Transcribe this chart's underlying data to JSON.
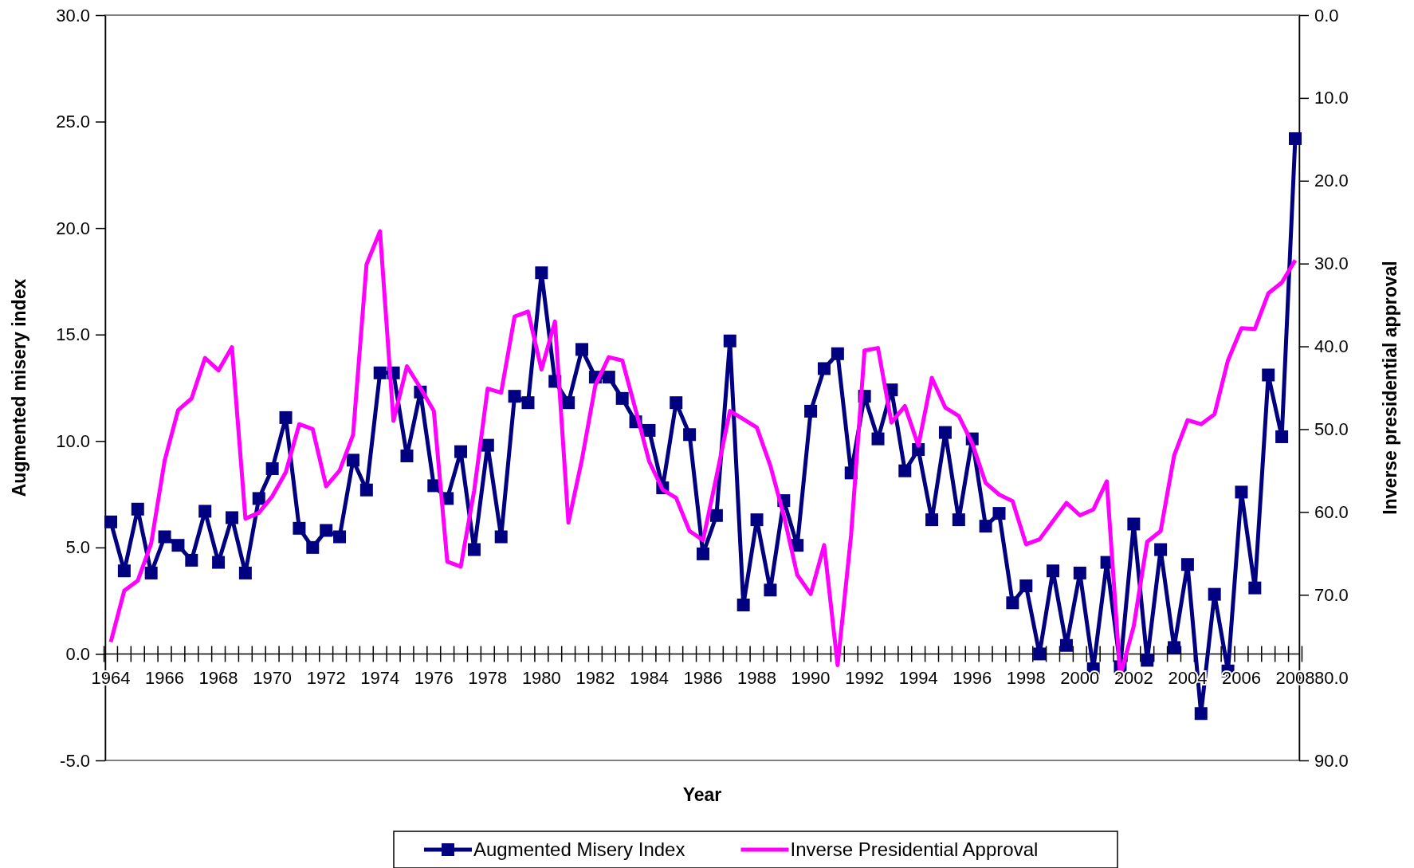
{
  "chart_data": {
    "type": "line",
    "xlabel": "Year",
    "ylabel": "Augmented misery index",
    "y2label": "Inverse presidential approval",
    "categories": [
      "1964",
      null,
      null,
      null,
      "1966",
      null,
      null,
      null,
      "1968",
      null,
      null,
      null,
      "1970",
      null,
      null,
      null,
      "1972",
      null,
      null,
      null,
      "1974",
      null,
      null,
      null,
      "1976",
      null,
      null,
      null,
      "1978",
      null,
      null,
      null,
      "1980",
      null,
      null,
      null,
      "1982",
      null,
      null,
      null,
      "1984",
      null,
      null,
      null,
      "1986",
      null,
      null,
      null,
      "1988",
      null,
      null,
      null,
      "1990",
      null,
      null,
      null,
      "1992",
      null,
      null,
      null,
      "1994",
      null,
      null,
      null,
      "1996",
      null,
      null,
      null,
      "1998",
      null,
      null,
      null,
      "2000",
      null,
      null,
      null,
      "2002",
      null,
      null,
      null,
      "2004",
      null,
      null,
      null,
      "2006",
      null,
      null,
      null,
      "2008"
    ],
    "series": [
      {
        "name": "Augmented Misery Index",
        "color": "#000080",
        "marker": "square",
        "values": [
          6.2,
          3.9,
          6.8,
          3.8,
          5.5,
          5.1,
          4.4,
          6.7,
          4.3,
          6.4,
          3.8,
          7.3,
          8.7,
          11.1,
          5.9,
          5.0,
          5.8,
          5.5,
          9.1,
          7.7,
          13.2,
          13.2,
          9.3,
          12.3,
          7.9,
          7.3,
          9.5,
          4.9,
          9.8,
          5.5,
          12.1,
          11.8,
          17.9,
          12.8,
          11.8,
          14.3,
          13.0,
          13.0,
          12.0,
          10.9,
          10.5,
          7.8,
          11.8,
          10.3,
          4.7,
          6.5,
          14.7,
          2.3,
          6.3,
          3.0,
          7.2,
          5.1,
          11.4,
          13.4,
          14.1,
          8.5,
          12.1,
          10.1,
          12.4,
          8.6,
          9.6,
          6.3,
          10.4,
          6.3,
          10.1,
          6.0,
          6.6,
          2.4,
          3.2,
          0.0,
          3.9,
          0.4,
          3.8,
          -0.7,
          4.3,
          -0.6,
          6.1,
          -0.3,
          4.9,
          0.3,
          4.2,
          -2.8,
          2.8,
          -0.8,
          7.6,
          3.1,
          13.1,
          10.2,
          24.2
        ]
      },
      {
        "name": "Inverse Presidential Approval",
        "color": "#ff00ff",
        "marker": "none",
        "axis": "y2",
        "values": [
          75.7,
          69.5,
          68.3,
          63.8,
          53.8,
          47.7,
          46.3,
          41.4,
          42.9,
          40.1,
          60.8,
          60.1,
          58.1,
          55.2,
          49.4,
          50.0,
          56.9,
          55.0,
          50.7,
          30.1,
          26.1,
          49.0,
          42.4,
          45.0,
          47.8,
          66.0,
          66.6,
          57.4,
          45.1,
          45.6,
          36.4,
          35.8,
          42.8,
          37.0,
          61.3,
          53.7,
          44.7,
          41.3,
          41.7,
          47.7,
          53.9,
          57.3,
          58.3,
          62.3,
          63.4,
          55.7,
          47.8,
          48.8,
          49.8,
          54.4,
          60.4,
          67.6,
          69.9,
          64.0,
          78.5,
          62.8,
          40.5,
          40.2,
          49.2,
          47.2,
          52.0,
          43.8,
          47.4,
          48.4,
          51.7,
          56.5,
          57.9,
          58.7,
          63.9,
          63.3,
          61.1,
          58.9,
          60.4,
          59.7,
          56.3,
          79.8,
          73.8,
          63.6,
          62.3,
          53.2,
          48.9,
          49.4,
          48.2,
          41.7,
          37.8,
          37.9,
          33.6,
          32.3,
          29.6
        ]
      }
    ],
    "ylim": [
      -5,
      30
    ],
    "yticks": [
      {
        "value": -5,
        "label": "-5.0"
      },
      {
        "value": 0,
        "label": "0.0"
      },
      {
        "value": 5,
        "label": "5.0"
      },
      {
        "value": 10,
        "label": "10.0"
      },
      {
        "value": 15,
        "label": "15.0"
      },
      {
        "value": 20,
        "label": "20.0"
      },
      {
        "value": 25,
        "label": "25.0"
      },
      {
        "value": 30,
        "label": "30.0"
      }
    ],
    "y2lim": [
      90,
      0
    ],
    "y2ticks": [
      {
        "value": 0,
        "label": "0.0"
      },
      {
        "value": 10,
        "label": "10.0"
      },
      {
        "value": 20,
        "label": "20.0"
      },
      {
        "value": 30,
        "label": "30.0"
      },
      {
        "value": 40,
        "label": "40.0"
      },
      {
        "value": 50,
        "label": "50.0"
      },
      {
        "value": 60,
        "label": "60.0"
      },
      {
        "value": 70,
        "label": "70.0"
      },
      {
        "value": 80,
        "label": "80.0"
      },
      {
        "value": 90,
        "label": "90.0"
      }
    ],
    "grid": false,
    "legend": "bottom"
  }
}
